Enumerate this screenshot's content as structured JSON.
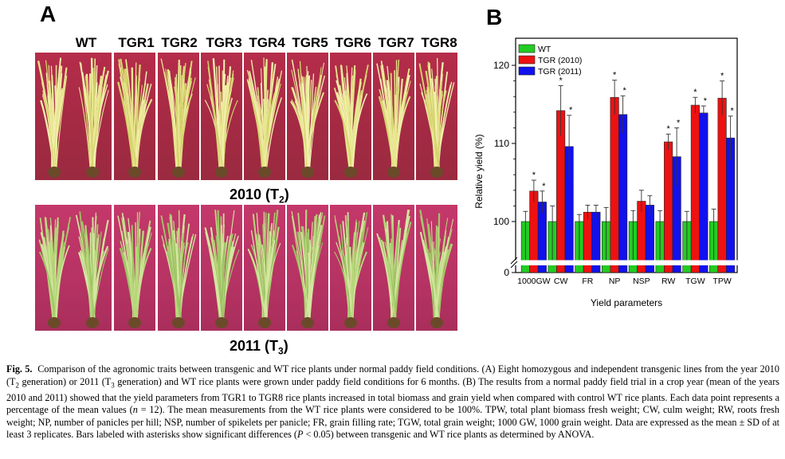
{
  "panelA": {
    "letter": "A",
    "plant_labels": [
      "WT",
      "TGR1",
      "TGR2",
      "TGR3",
      "TGR4",
      "TGR5",
      "TGR6",
      "TGR7",
      "TGR8"
    ],
    "year1_label": "2010 (T",
    "year1_sub": "2",
    "year1_close": ")",
    "year2_label": "2011 (T",
    "year2_sub": "3",
    "year2_close": ")"
  },
  "panelB": {
    "letter": "B"
  },
  "chart_data": {
    "type": "bar",
    "categories": [
      "1000GW",
      "CW",
      "FR",
      "NP",
      "NSP",
      "RW",
      "TGW",
      "TPW"
    ],
    "series": [
      {
        "name": "WT",
        "color": "#22cc22",
        "values": [
          100,
          100,
          100,
          100,
          100,
          100,
          100,
          100
        ],
        "errors": [
          1.3,
          2.0,
          0.9,
          1.8,
          1.4,
          1.4,
          1.3,
          1.6
        ]
      },
      {
        "name": "TGR (2010)",
        "color": "#ee1111",
        "values": [
          103.9,
          114.2,
          101.2,
          115.9,
          102.6,
          110.2,
          114.9,
          115.8
        ],
        "errors": [
          1.4,
          3.2,
          0.9,
          2.2,
          1.4,
          1.0,
          1.0,
          2.2
        ]
      },
      {
        "name": "TGR (2011)",
        "color": "#1111ee",
        "values": [
          102.5,
          109.6,
          101.2,
          113.7,
          102.1,
          108.3,
          113.9,
          110.7
        ],
        "errors": [
          1.4,
          4.0,
          0.9,
          2.4,
          1.2,
          3.7,
          0.9,
          2.8
        ]
      }
    ],
    "significance": [
      [
        false,
        true,
        true
      ],
      [
        false,
        true,
        true
      ],
      [
        false,
        false,
        false
      ],
      [
        false,
        true,
        true
      ],
      [
        false,
        false,
        false
      ],
      [
        false,
        true,
        true
      ],
      [
        false,
        true,
        true
      ],
      [
        false,
        true,
        true
      ]
    ],
    "significance_mark": "*",
    "xlabel": "Yield parameters",
    "ylabel": "Relative yield (%)",
    "yticks": [
      0,
      100,
      110,
      120
    ],
    "ylim_broken": [
      0,
      100,
      120
    ],
    "legend_position": "top-left",
    "axis_break": true
  },
  "caption": {
    "fig_label": "Fig. 5.",
    "text_1": "Comparison of the agronomic traits between transgenic and WT rice plants under normal paddy field conditions. (A) Eight homozygous and independent transgenic lines from the year 2010 (T",
    "sub_1": "2",
    "text_2": " generation) or 2011 (T",
    "sub_2": "3",
    "text_3": " generation) and WT rice plants were grown under paddy field conditions for 6 months. (B) The results from a normal paddy field trial in a crop year (mean of the years 2010 and 2011) showed that the yield parameters from TGR1 to TGR8 rice plants increased in total biomass and grain yield when compared with control WT rice plants. Each data point represents a percentage of the mean values (",
    "n_symbol": "n",
    "text_4": " = 12). The mean measurements from the WT rice plants were considered to be 100%. TPW, total plant biomass fresh weight; CW, culm weight; RW, roots fresh weight; NP, number of panicles per hill; NSP, number of spikelets per panicle; FR, grain filling rate; TGW, total grain weight; 1000 GW, 1000 grain weight. Data are expressed as the mean ± SD of at least 3 replicates. Bars labeled with asterisks show significant differences (",
    "p_symbol": "P",
    "text_5": " < 0.05) between transgenic and WT rice plants as determined by ANOVA."
  }
}
